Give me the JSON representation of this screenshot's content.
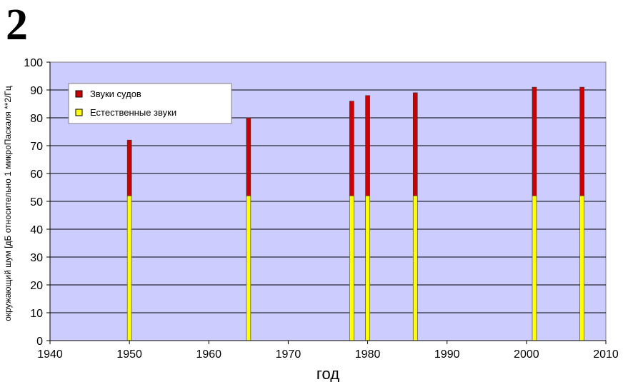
{
  "figure": {
    "panel_label": "2"
  },
  "chart_data": {
    "type": "bar",
    "stacked": true,
    "xlabel": "год",
    "ylabel": "окружающий шум [дБ относительно 1 микроПаскаля **2/Гц",
    "xlim": [
      1940,
      2010
    ],
    "ylim": [
      0,
      100
    ],
    "xticks": [
      "1940",
      "1950",
      "1960",
      "1970",
      "1980",
      "1990",
      "2000",
      "2010"
    ],
    "yticks": [
      "0",
      "10",
      "20",
      "30",
      "40",
      "50",
      "60",
      "70",
      "80",
      "90",
      "100"
    ],
    "grid": true,
    "legend_position": "top-left",
    "plot_background": "#ccccff",
    "x": [
      1950,
      1965,
      1978,
      1980,
      1986,
      2001,
      2007
    ],
    "series": [
      {
        "name": "Естественные звуки",
        "color": "#ffff00",
        "values": [
          52,
          52,
          52,
          52,
          52,
          52,
          52
        ]
      },
      {
        "name": "Звуки судов",
        "color": "#cc0000",
        "values": [
          20,
          28,
          34,
          36,
          37,
          39,
          39
        ]
      }
    ],
    "legend": [
      {
        "label": "Звуки судов",
        "color": "#cc0000"
      },
      {
        "label": "Естественные звуки",
        "color": "#ffff00"
      }
    ]
  }
}
